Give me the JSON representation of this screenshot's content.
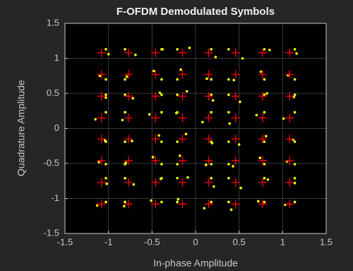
{
  "chart_data": {
    "type": "scatter",
    "title": "F-OFDM Demodulated Symbols",
    "x_label": "In-phase Amplitude",
    "y_label": "Quadrature Amplitude",
    "xlim": [
      -1.5,
      1.5
    ],
    "ylim": [
      -1.5,
      1.5
    ],
    "xticks": [
      -1.5,
      -1,
      -0.5,
      0,
      0.5,
      1,
      1.5
    ],
    "yticks": [
      -1.5,
      -1,
      -0.5,
      0,
      0.5,
      1,
      1.5
    ],
    "grid": true,
    "series": [
      {
        "color": "#ffff00",
        "marker": "dot",
        "x": [
          -1.03,
          -0.81,
          -0.39,
          -0.21,
          0.18,
          0.38,
          0.79,
          1.14,
          -1.13,
          -0.82,
          -0.51,
          -0.2,
          0.1,
          0.41,
          0.72,
          1.03,
          -1.03,
          -0.81,
          -0.39,
          -0.21,
          0.18,
          0.38,
          0.79,
          1.14,
          -1.02,
          -0.71,
          -0.4,
          -0.09,
          0.21,
          0.52,
          0.83,
          1.14,
          -1.03,
          -0.81,
          -0.39,
          -0.21,
          0.18,
          0.38,
          0.79,
          1.14,
          -1.11,
          -0.8,
          -0.49,
          -0.18,
          0.12,
          0.43,
          0.74,
          1.05,
          -1.03,
          -0.81,
          -0.39,
          -0.21,
          0.18,
          0.38,
          0.79,
          1.14,
          -1.04,
          -0.73,
          -0.42,
          -0.11,
          0.19,
          0.5,
          0.81,
          1.12,
          -1.03,
          -0.81,
          -0.39,
          -0.21,
          0.18,
          0.38,
          0.79,
          1.14,
          -1.15,
          -0.84,
          -0.53,
          -0.22,
          0.08,
          0.39,
          0.7,
          1.01,
          -1.03,
          -0.81,
          -0.39,
          -0.21,
          0.18,
          0.38,
          0.79,
          1.14,
          -1.03,
          -0.72,
          -0.41,
          -0.1,
          0.2,
          0.51,
          0.82,
          1.13,
          -1.03,
          -0.81,
          -0.39,
          -0.21,
          0.18,
          0.38,
          0.79,
          1.14,
          -1.1,
          -0.79,
          -0.48,
          -0.17,
          0.13,
          0.44,
          0.75,
          1.06,
          -1.03,
          -0.81,
          -0.39,
          -0.21,
          0.18,
          0.38,
          0.79,
          1.14,
          -1.0,
          -0.69,
          -0.38,
          -0.07,
          0.23,
          0.54,
          0.85,
          1.16
        ],
        "values": [
          -1.05,
          -1.05,
          -1.05,
          -1.05,
          -1.05,
          -1.05,
          -1.05,
          -1.05,
          -1.1,
          -1.11,
          -1.03,
          -1.01,
          -1.14,
          -1.16,
          -1.04,
          -1.09,
          -0.71,
          -0.71,
          -0.71,
          -0.71,
          -0.71,
          -0.71,
          -0.71,
          -0.71,
          -0.79,
          -0.8,
          -0.72,
          -0.7,
          -0.83,
          -0.85,
          -0.73,
          -0.78,
          -0.51,
          -0.51,
          -0.51,
          -0.51,
          -0.51,
          -0.51,
          -0.51,
          -0.51,
          -0.48,
          -0.49,
          -0.41,
          -0.39,
          -0.52,
          -0.54,
          -0.42,
          -0.47,
          -0.19,
          -0.19,
          -0.19,
          -0.19,
          -0.19,
          -0.19,
          -0.19,
          -0.19,
          -0.17,
          -0.18,
          -0.1,
          -0.08,
          -0.21,
          -0.23,
          -0.11,
          -0.16,
          0.23,
          0.23,
          0.23,
          0.23,
          0.23,
          0.23,
          0.23,
          0.23,
          0.13,
          0.12,
          0.2,
          0.22,
          0.09,
          0.07,
          0.19,
          0.14,
          0.48,
          0.48,
          0.48,
          0.48,
          0.48,
          0.48,
          0.48,
          0.48,
          0.44,
          0.43,
          0.51,
          0.53,
          0.4,
          0.38,
          0.5,
          0.45,
          0.7,
          0.7,
          0.7,
          0.7,
          0.7,
          0.7,
          0.7,
          0.7,
          0.75,
          0.74,
          0.82,
          0.84,
          0.71,
          0.69,
          0.81,
          0.76,
          1.13,
          1.13,
          1.13,
          1.13,
          1.13,
          1.13,
          1.13,
          1.13,
          1.06,
          1.05,
          1.13,
          1.15,
          1.02,
          1.0,
          1.12,
          1.07
        ]
      },
      {
        "color": "#ff0000",
        "marker": "plus",
        "x": [
          -1.08,
          -0.77,
          -0.46,
          -0.15,
          0.15,
          0.46,
          0.77,
          1.08,
          -1.08,
          -0.77,
          -0.46,
          -0.15,
          0.15,
          0.46,
          0.77,
          1.08,
          -1.08,
          -0.77,
          -0.46,
          -0.15,
          0.15,
          0.46,
          0.77,
          1.08,
          -1.08,
          -0.77,
          -0.46,
          -0.15,
          0.15,
          0.46,
          0.77,
          1.08,
          -1.08,
          -0.77,
          -0.46,
          -0.15,
          0.15,
          0.46,
          0.77,
          1.08,
          -1.08,
          -0.77,
          -0.46,
          -0.15,
          0.15,
          0.46,
          0.77,
          1.08,
          -1.08,
          -0.77,
          -0.46,
          -0.15,
          0.15,
          0.46,
          0.77,
          1.08,
          -1.08,
          -0.77,
          -0.46,
          -0.15,
          0.15,
          0.46,
          0.77,
          1.08
        ],
        "values": [
          -1.08,
          -1.08,
          -1.08,
          -1.08,
          -1.08,
          -1.08,
          -1.08,
          -1.08,
          -0.77,
          -0.77,
          -0.77,
          -0.77,
          -0.77,
          -0.77,
          -0.77,
          -0.77,
          -0.46,
          -0.46,
          -0.46,
          -0.46,
          -0.46,
          -0.46,
          -0.46,
          -0.46,
          -0.15,
          -0.15,
          -0.15,
          -0.15,
          -0.15,
          -0.15,
          -0.15,
          -0.15,
          0.15,
          0.15,
          0.15,
          0.15,
          0.15,
          0.15,
          0.15,
          0.15,
          0.46,
          0.46,
          0.46,
          0.46,
          0.46,
          0.46,
          0.46,
          0.46,
          0.77,
          0.77,
          0.77,
          0.77,
          0.77,
          0.77,
          0.77,
          0.77,
          1.08,
          1.08,
          1.08,
          1.08,
          1.08,
          1.08,
          1.08,
          1.08
        ]
      }
    ]
  }
}
